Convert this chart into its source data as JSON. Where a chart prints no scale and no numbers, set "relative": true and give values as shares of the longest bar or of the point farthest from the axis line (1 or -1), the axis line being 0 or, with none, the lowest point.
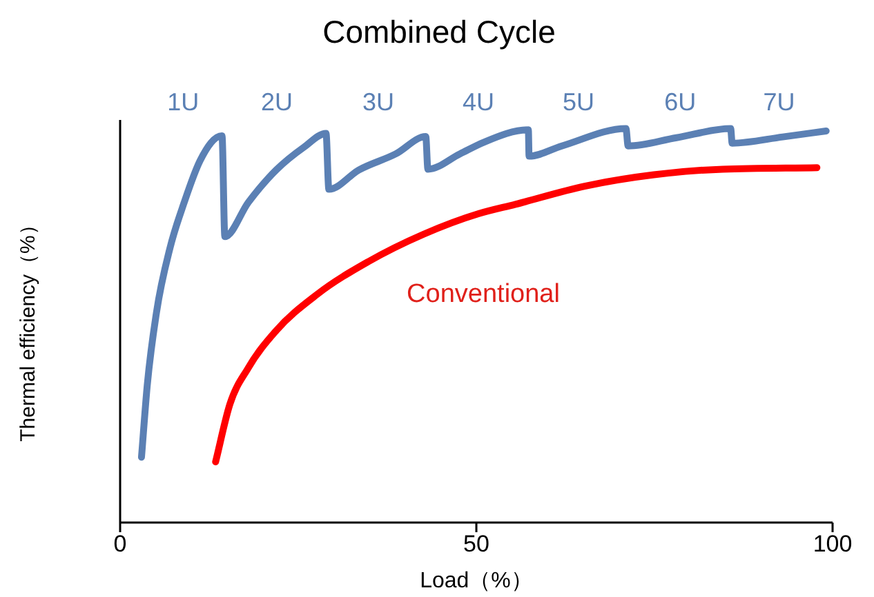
{
  "chart_data": {
    "type": "line",
    "title": "Combined Cycle",
    "xlabel": "Load（%）",
    "ylabel": "Thermal efficiency（%）",
    "relative": true,
    "xlim": [
      0,
      100
    ],
    "xticks": [
      0,
      50,
      100
    ],
    "grid": false,
    "legend": false,
    "marker": "none",
    "line_style": "solid",
    "series": [
      {
        "color": "#5b80b4",
        "x": [
          3.0,
          3.8,
          5.1,
          7.0,
          9.0,
          11.2,
          14.3,
          14.7,
          18.0,
          21.9,
          25.8,
          28.9,
          29.3,
          33.5,
          38.7,
          42.9,
          43.2,
          47.7,
          51.0,
          57.3,
          57.4,
          62.0,
          71.0,
          71.3,
          78.1,
          85.7,
          85.9,
          93.0,
          99.1
        ],
        "values": [
          0.166,
          0.347,
          0.533,
          0.697,
          0.813,
          0.918,
          0.982,
          0.726,
          0.813,
          0.895,
          0.953,
          0.988,
          0.846,
          0.895,
          0.936,
          0.98,
          0.897,
          0.936,
          0.965,
          0.997,
          0.93,
          0.956,
          1.0,
          0.956,
          0.977,
          1.0,
          0.963,
          0.979,
          0.994
        ]
      },
      {
        "name": "Conventional",
        "color": "#ff0000",
        "x": [
          13.4,
          15.4,
          18.0,
          21.9,
          27.7,
          34.8,
          42.6,
          50.3,
          55.5,
          65.2,
          74.9,
          84.6,
          97.8
        ],
        "values": [
          0.154,
          0.3,
          0.393,
          0.487,
          0.58,
          0.662,
          0.732,
          0.784,
          0.808,
          0.854,
          0.883,
          0.897,
          0.901
        ]
      }
    ],
    "annotations": [
      "1U",
      "2U",
      "3U",
      "4U",
      "5U",
      "6U",
      "7U"
    ]
  }
}
